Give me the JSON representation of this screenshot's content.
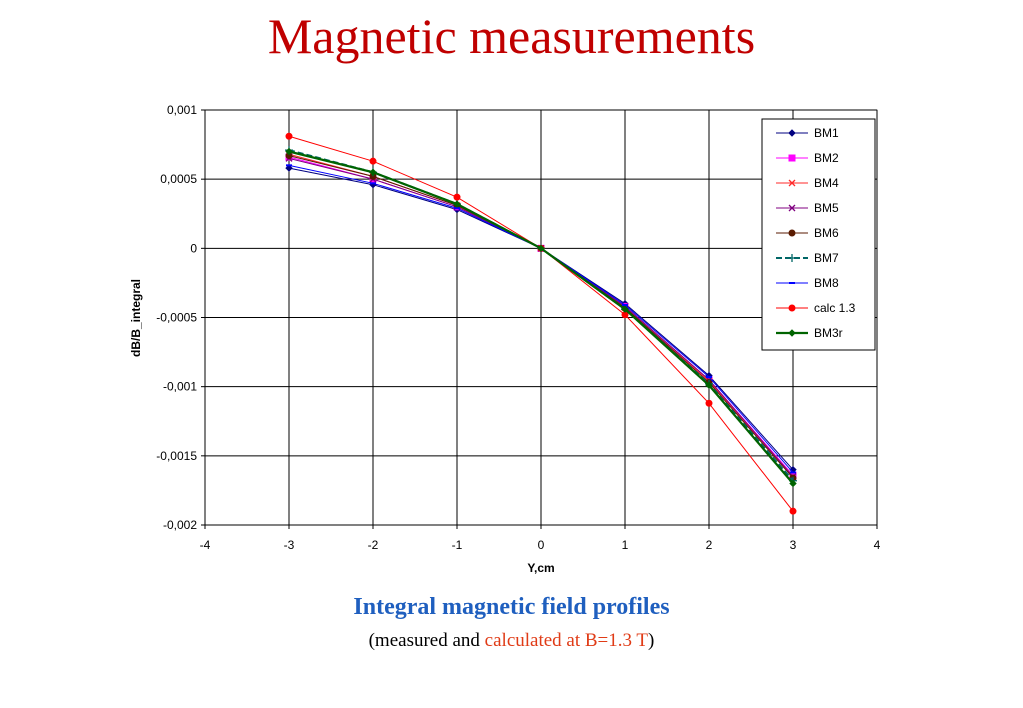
{
  "slide": {
    "title": "Magnetic measurements",
    "caption_main": "Integral magnetic field profiles",
    "caption_sub_open": "(measured and ",
    "caption_sub_red": "calculated at B=1.3 T",
    "caption_sub_close": ")"
  },
  "colors": {
    "title": "#c00000",
    "caption_main": "#1f5fbf",
    "caption_red": "#e03b16"
  },
  "chart_data": {
    "type": "line",
    "title": "",
    "xlabel": "Y,cm",
    "ylabel": "dB/B_integral",
    "xlim": [
      -4,
      4
    ],
    "ylim": [
      -0.002,
      0.001
    ],
    "x_ticks": [
      -4,
      -3,
      -2,
      -1,
      0,
      1,
      2,
      3,
      4
    ],
    "x_tick_labels": [
      "-4",
      "-3",
      "-2",
      "-1",
      "0",
      "1",
      "2",
      "3",
      "4"
    ],
    "y_ticks": [
      0.001,
      0.0005,
      0,
      -0.0005,
      -0.001,
      -0.0015,
      -0.002
    ],
    "y_tick_labels": [
      "0,001",
      "0,0005",
      "0",
      "-0,0005",
      "-0,001",
      "-0,0015",
      "-0,002"
    ],
    "grid": true,
    "legend_position": "right",
    "x": [
      -3,
      -2,
      -1,
      0,
      1,
      2,
      3
    ],
    "series": [
      {
        "name": "BM1",
        "color": "#000080",
        "marker": "diamond",
        "dashed": false,
        "values": [
          0.00058,
          0.00046,
          0.00028,
          0,
          -0.0004,
          -0.00092,
          -0.0016
        ]
      },
      {
        "name": "BM2",
        "color": "#ff00ff",
        "marker": "square",
        "dashed": false,
        "values": [
          0.00066,
          0.0005,
          0.0003,
          0,
          -0.00042,
          -0.00095,
          -0.00164
        ]
      },
      {
        "name": "BM4",
        "color": "#ff2a2a",
        "marker": "x",
        "dashed": false,
        "values": [
          0.00068,
          0.00052,
          0.00031,
          0,
          -0.00043,
          -0.00096,
          -0.00165
        ]
      },
      {
        "name": "BM5",
        "color": "#800080",
        "marker": "x",
        "dashed": false,
        "values": [
          0.00065,
          0.0005,
          0.0003,
          0,
          -0.00042,
          -0.00095,
          -0.00165
        ]
      },
      {
        "name": "BM6",
        "color": "#5a1a00",
        "marker": "circle",
        "dashed": false,
        "values": [
          0.00067,
          0.00052,
          0.00031,
          0,
          -0.00043,
          -0.00097,
          -0.00166
        ]
      },
      {
        "name": "BM7",
        "color": "#006666",
        "marker": "plus",
        "dashed": true,
        "values": [
          0.00071,
          0.00055,
          0.00032,
          0,
          -0.00044,
          -0.00098,
          -0.00168
        ]
      },
      {
        "name": "BM8",
        "color": "#0000ff",
        "marker": "dash",
        "dashed": false,
        "values": [
          0.0006,
          0.00047,
          0.00029,
          0,
          -0.00041,
          -0.00093,
          -0.00162
        ]
      },
      {
        "name": "calc 1.3",
        "color": "#ff0000",
        "marker": "circle",
        "dashed": false,
        "values": [
          0.00081,
          0.00063,
          0.00037,
          0,
          -0.00048,
          -0.00112,
          -0.0019
        ]
      },
      {
        "name": "BM3r",
        "color": "#006400",
        "marker": "diamond",
        "dashed": false,
        "values": [
          0.0007,
          0.00055,
          0.00032,
          0,
          -0.00044,
          -0.00099,
          -0.0017
        ]
      }
    ]
  }
}
